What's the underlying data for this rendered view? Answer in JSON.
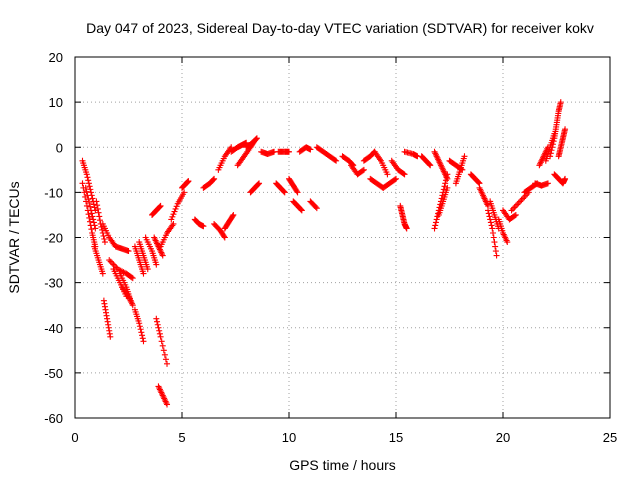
{
  "chart_data": {
    "type": "scatter",
    "title": "Day 047 of 2023, Sidereal Day-to-day VTEC variation (SDTVAR) for receiver kokv",
    "xlabel": "GPS time / hours",
    "ylabel": "SDTVAR / TECUs",
    "xlim": [
      0,
      25
    ],
    "ylim": [
      -60,
      20
    ],
    "xticks": [
      0,
      5,
      10,
      15,
      20,
      25
    ],
    "yticks": [
      20,
      10,
      0,
      -10,
      -20,
      -30,
      -40,
      -50,
      -60
    ],
    "xtick_labels": [
      "0",
      "5",
      "10",
      "15",
      "20",
      "25"
    ],
    "ytick_labels": [
      "20",
      "10",
      "0",
      "-10",
      "-20",
      "-30",
      "-40",
      "-50",
      "-60"
    ],
    "grid": true,
    "marker": "+",
    "color": "#ff0000",
    "series": [
      {
        "name": "SDTVAR",
        "segments": [
          [
            [
              0.35,
              -3
            ],
            [
              0.55,
              -6
            ],
            [
              0.75,
              -10
            ],
            [
              0.95,
              -14
            ]
          ],
          [
            [
              0.35,
              -8
            ],
            [
              0.6,
              -14
            ],
            [
              0.8,
              -19
            ],
            [
              0.95,
              -22
            ]
          ],
          [
            [
              0.5,
              -9
            ],
            [
              0.75,
              -14
            ],
            [
              0.95,
              -18
            ]
          ],
          [
            [
              1.0,
              -12
            ],
            [
              1.2,
              -17
            ],
            [
              1.4,
              -21
            ]
          ],
          [
            [
              0.9,
              -22
            ],
            [
              1.1,
              -25
            ],
            [
              1.3,
              -28
            ]
          ],
          [
            [
              1.35,
              -34
            ],
            [
              1.5,
              -38
            ],
            [
              1.65,
              -42
            ]
          ],
          [
            [
              1.3,
              -17
            ],
            [
              1.6,
              -20
            ],
            [
              1.9,
              -22
            ],
            [
              2.2,
              -22.5
            ],
            [
              2.5,
              -23
            ]
          ],
          [
            [
              1.6,
              -25
            ],
            [
              2.0,
              -27
            ],
            [
              2.4,
              -28
            ],
            [
              2.7,
              -29
            ]
          ],
          [
            [
              1.8,
              -27
            ],
            [
              2.1,
              -30
            ],
            [
              2.4,
              -33
            ]
          ],
          [
            [
              2.1,
              -28
            ],
            [
              2.4,
              -31
            ],
            [
              2.6,
              -34
            ]
          ],
          [
            [
              2.2,
              -31
            ],
            [
              2.5,
              -33
            ],
            [
              2.7,
              -35
            ]
          ],
          [
            [
              2.8,
              -22
            ],
            [
              3.0,
              -25
            ],
            [
              3.2,
              -28
            ]
          ],
          [
            [
              3.0,
              -21
            ],
            [
              3.2,
              -24
            ],
            [
              3.4,
              -27
            ]
          ],
          [
            [
              2.8,
              -36
            ],
            [
              3.0,
              -39
            ],
            [
              3.2,
              -43
            ]
          ],
          [
            [
              3.3,
              -20
            ],
            [
              3.6,
              -23
            ],
            [
              3.8,
              -26
            ]
          ],
          [
            [
              3.8,
              -38
            ],
            [
              4.0,
              -42
            ],
            [
              4.3,
              -48
            ]
          ],
          [
            [
              3.9,
              -53
            ],
            [
              4.1,
              -55
            ],
            [
              4.3,
              -57
            ]
          ],
          [
            [
              3.6,
              -15
            ],
            [
              3.8,
              -14
            ],
            [
              4.0,
              -13
            ]
          ],
          [
            [
              3.7,
              -20
            ],
            [
              3.9,
              -22
            ],
            [
              4.1,
              -24
            ]
          ],
          [
            [
              4.0,
              -22
            ],
            [
              4.3,
              -19
            ],
            [
              4.6,
              -17
            ]
          ],
          [
            [
              4.5,
              -16
            ],
            [
              4.8,
              -12.5
            ],
            [
              5.1,
              -10
            ]
          ],
          [
            [
              5.0,
              -9
            ],
            [
              5.2,
              -8
            ],
            [
              5.3,
              -7.5
            ]
          ],
          [
            [
              5.6,
              -16
            ],
            [
              5.8,
              -17
            ],
            [
              6.0,
              -17.5
            ]
          ],
          [
            [
              6.0,
              -9
            ],
            [
              6.3,
              -8
            ],
            [
              6.5,
              -7
            ]
          ],
          [
            [
              6.5,
              -17
            ],
            [
              6.8,
              -18.5
            ],
            [
              7.0,
              -20
            ]
          ],
          [
            [
              6.7,
              -5
            ],
            [
              7.0,
              -2
            ],
            [
              7.3,
              0
            ]
          ],
          [
            [
              7.0,
              -18
            ],
            [
              7.2,
              -16.5
            ],
            [
              7.4,
              -15
            ]
          ],
          [
            [
              7.3,
              -1
            ],
            [
              7.6,
              0
            ],
            [
              7.8,
              0.5
            ],
            [
              8.0,
              1
            ]
          ],
          [
            [
              7.6,
              -4
            ],
            [
              7.9,
              -2
            ],
            [
              8.2,
              0
            ],
            [
              8.4,
              1.5
            ]
          ],
          [
            [
              8.0,
              0
            ],
            [
              8.3,
              1
            ],
            [
              8.5,
              2
            ]
          ],
          [
            [
              8.2,
              -10
            ],
            [
              8.4,
              -9
            ],
            [
              8.6,
              -8
            ]
          ],
          [
            [
              8.7,
              -1
            ],
            [
              9.0,
              -1.5
            ],
            [
              9.3,
              -1
            ]
          ],
          [
            [
              9.4,
              -8
            ],
            [
              9.6,
              -9
            ],
            [
              9.8,
              -10
            ]
          ],
          [
            [
              9.5,
              -1
            ],
            [
              9.8,
              -1
            ],
            [
              10.0,
              -1
            ]
          ],
          [
            [
              10.0,
              -7
            ],
            [
              10.2,
              -8.5
            ],
            [
              10.4,
              -10
            ]
          ],
          [
            [
              10.2,
              -12
            ],
            [
              10.4,
              -13
            ],
            [
              10.6,
              -14
            ]
          ],
          [
            [
              10.5,
              -1
            ],
            [
              10.8,
              0
            ],
            [
              11.0,
              -0.5
            ]
          ],
          [
            [
              11.0,
              -12
            ],
            [
              11.3,
              -13.5
            ]
          ],
          [
            [
              11.3,
              0
            ],
            [
              11.6,
              -1
            ],
            [
              11.9,
              -2
            ],
            [
              12.2,
              -3
            ]
          ],
          [
            [
              12.5,
              -2
            ],
            [
              12.8,
              -3
            ],
            [
              13.0,
              -4
            ]
          ],
          [
            [
              12.9,
              -4
            ],
            [
              13.2,
              -6
            ],
            [
              13.5,
              -5
            ]
          ],
          [
            [
              13.5,
              -3
            ],
            [
              13.8,
              -2
            ],
            [
              14.0,
              -1
            ]
          ],
          [
            [
              13.8,
              -7
            ],
            [
              14.1,
              -8
            ],
            [
              14.4,
              -9
            ]
          ],
          [
            [
              14.0,
              -1
            ],
            [
              14.3,
              -3
            ],
            [
              14.6,
              -6
            ]
          ],
          [
            [
              14.4,
              -9
            ],
            [
              14.7,
              -8
            ],
            [
              15.0,
              -7
            ]
          ],
          [
            [
              14.8,
              -3
            ],
            [
              15.1,
              -5
            ],
            [
              15.4,
              -6
            ]
          ],
          [
            [
              15.2,
              -13
            ],
            [
              15.3,
              -15
            ],
            [
              15.4,
              -17
            ],
            [
              15.5,
              -18
            ]
          ],
          [
            [
              15.4,
              -1
            ],
            [
              15.8,
              -1.5
            ],
            [
              16.0,
              -2
            ]
          ],
          [
            [
              16.2,
              -2
            ],
            [
              16.4,
              -3
            ],
            [
              16.6,
              -4
            ]
          ],
          [
            [
              16.8,
              -1
            ],
            [
              17.0,
              -3
            ],
            [
              17.2,
              -5
            ],
            [
              17.4,
              -7
            ]
          ],
          [
            [
              16.8,
              -18
            ],
            [
              17.0,
              -14
            ],
            [
              17.2,
              -10
            ],
            [
              17.4,
              -6
            ]
          ],
          [
            [
              17.0,
              -15
            ],
            [
              17.2,
              -12
            ],
            [
              17.4,
              -9
            ]
          ],
          [
            [
              17.5,
              -3
            ],
            [
              17.8,
              -4
            ],
            [
              18.1,
              -5
            ]
          ],
          [
            [
              17.8,
              -8
            ],
            [
              18.0,
              -5
            ],
            [
              18.2,
              -2
            ]
          ],
          [
            [
              18.5,
              -6
            ],
            [
              18.7,
              -7
            ],
            [
              18.9,
              -8
            ]
          ],
          [
            [
              18.9,
              -9
            ],
            [
              19.1,
              -11
            ],
            [
              19.3,
              -13
            ]
          ],
          [
            [
              19.3,
              -14
            ],
            [
              19.5,
              -18
            ],
            [
              19.7,
              -24
            ]
          ],
          [
            [
              19.4,
              -12
            ],
            [
              19.6,
              -15
            ],
            [
              19.8,
              -18
            ]
          ],
          [
            [
              19.8,
              -16
            ],
            [
              20.0,
              -19
            ],
            [
              20.2,
              -21
            ]
          ],
          [
            [
              20.0,
              -14
            ],
            [
              20.3,
              -16
            ],
            [
              20.6,
              -15
            ]
          ],
          [
            [
              20.4,
              -14
            ],
            [
              20.8,
              -12
            ],
            [
              21.2,
              -10
            ]
          ],
          [
            [
              21.0,
              -10
            ],
            [
              21.3,
              -9
            ],
            [
              21.6,
              -8
            ]
          ],
          [
            [
              21.5,
              -8
            ],
            [
              21.8,
              -8.5
            ],
            [
              22.1,
              -8
            ]
          ],
          [
            [
              21.7,
              -4
            ],
            [
              21.9,
              -2
            ],
            [
              22.1,
              0
            ]
          ],
          [
            [
              22.0,
              -3
            ],
            [
              22.2,
              0
            ],
            [
              22.4,
              3
            ]
          ],
          [
            [
              22.2,
              -2
            ],
            [
              22.4,
              2
            ],
            [
              22.5,
              5
            ],
            [
              22.6,
              8
            ],
            [
              22.7,
              10
            ]
          ],
          [
            [
              22.6,
              -2
            ],
            [
              22.7,
              0
            ],
            [
              22.8,
              2
            ],
            [
              22.9,
              4
            ]
          ],
          [
            [
              22.4,
              -6
            ],
            [
              22.6,
              -7
            ],
            [
              22.8,
              -8
            ],
            [
              22.9,
              -7
            ]
          ]
        ]
      }
    ]
  }
}
